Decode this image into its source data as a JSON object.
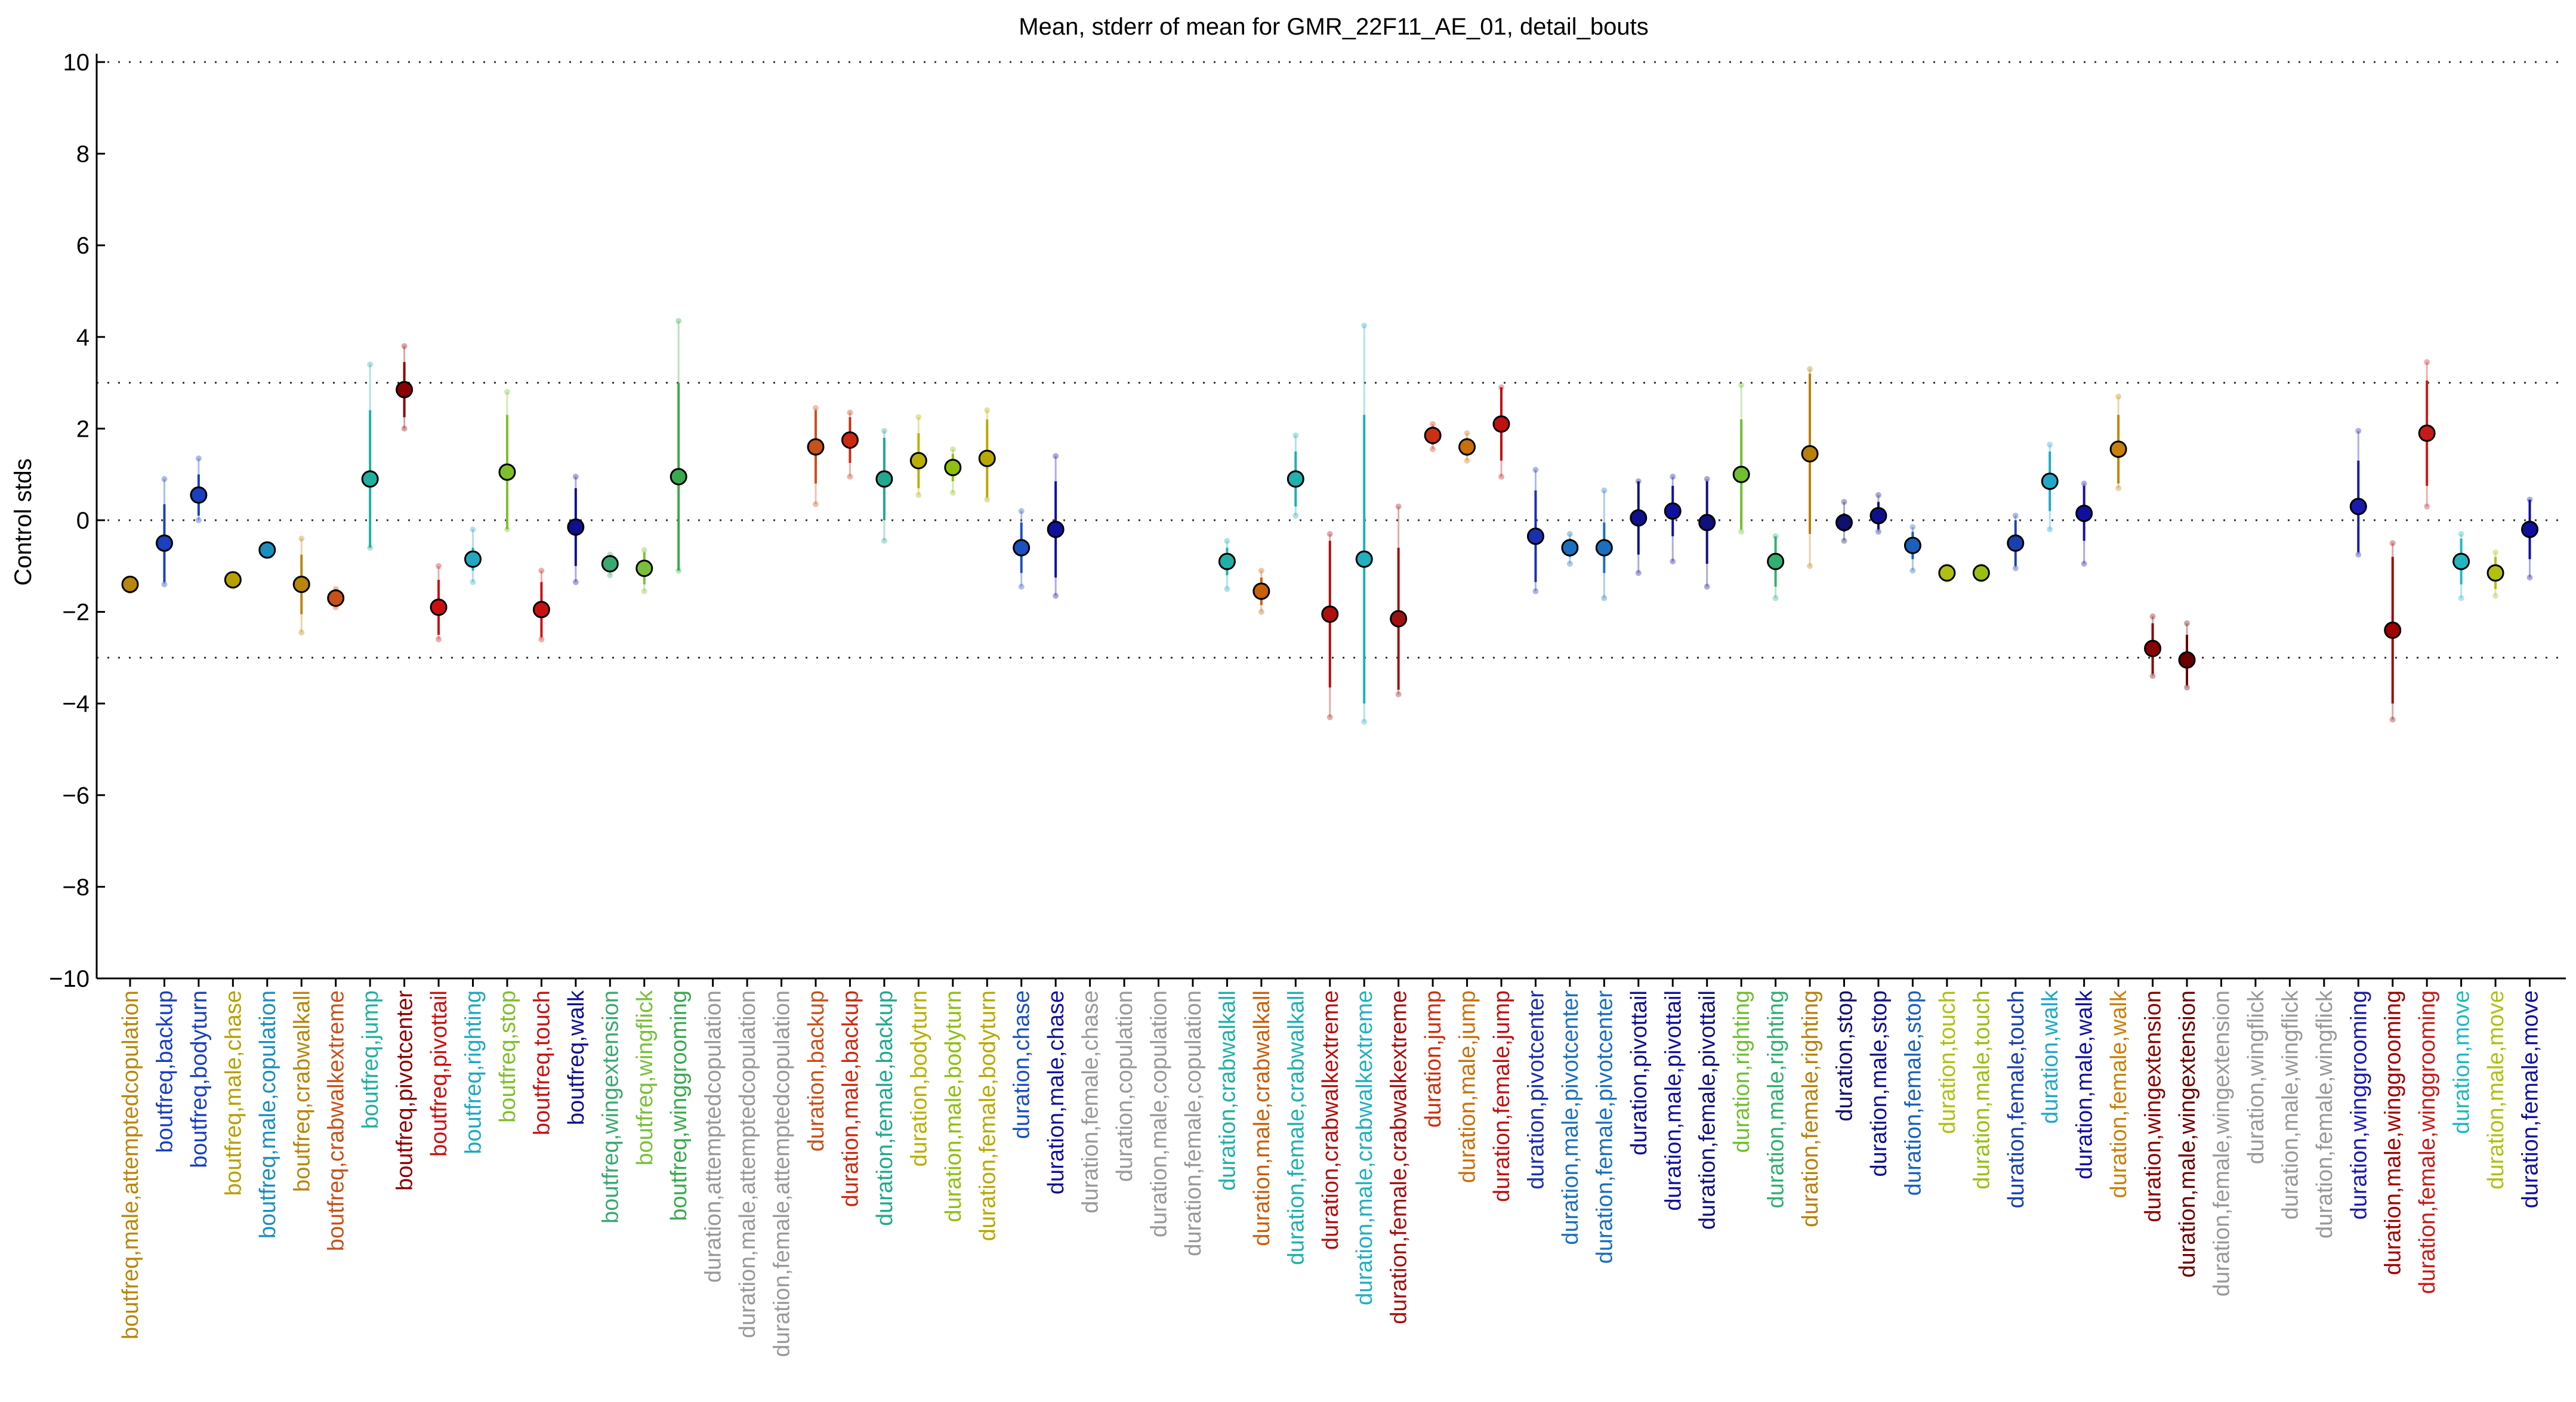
{
  "chart_data": {
    "type": "scatter",
    "title": "Mean, stderr of mean for GMR_22F11_AE_01, detail_bouts",
    "ylabel": "Control stds",
    "xlabel": "",
    "ylim": [
      -10,
      10
    ],
    "yticks": [
      -10,
      -8,
      -6,
      -4,
      -2,
      0,
      2,
      4,
      6,
      8,
      10
    ],
    "reference_lines": [
      -10,
      -3,
      0,
      3,
      10
    ],
    "grid": false,
    "legend": "none",
    "categories": [
      {
        "label": "boutfreq,male,attemptedcopulation",
        "color": "#b8860b",
        "mean": -1.4,
        "stderr": 0.1,
        "range": [
          -1.55,
          -1.3
        ]
      },
      {
        "label": "boutfreq,backup",
        "color": "#1a3fbf",
        "mean": -0.5,
        "stderr": 0.85,
        "range": [
          -1.4,
          0.9
        ]
      },
      {
        "label": "boutfreq,bodyturn",
        "color": "#1a3fbf",
        "mean": 0.55,
        "stderr": 0.45,
        "range": [
          0.0,
          1.35
        ]
      },
      {
        "label": "boutfreq,male,chase",
        "color": "#b8a000",
        "mean": -1.3,
        "stderr": 0.1,
        "range": [
          -1.45,
          -1.2
        ]
      },
      {
        "label": "boutfreq,male,copulation",
        "color": "#1a8fbf",
        "mean": -0.65,
        "stderr": 0.05,
        "range": [
          -0.75,
          -0.55
        ]
      },
      {
        "label": "boutfreq,crabwalkall",
        "color": "#b8860b",
        "mean": -1.4,
        "stderr": 0.65,
        "range": [
          -2.45,
          -0.4
        ]
      },
      {
        "label": "boutfreq,crabwalkextreme",
        "color": "#c8501a",
        "mean": -1.7,
        "stderr": 0.2,
        "range": [
          -1.9,
          -1.5
        ]
      },
      {
        "label": "boutfreq,jump",
        "color": "#20b0a0",
        "mean": 0.9,
        "stderr": 1.5,
        "range": [
          -0.6,
          3.4
        ]
      },
      {
        "label": "boutfreq,pivotcenter",
        "color": "#8b0000",
        "mean": 2.85,
        "stderr": 0.6,
        "range": [
          2.0,
          3.8
        ]
      },
      {
        "label": "boutfreq,pivottail",
        "color": "#cc1010",
        "mean": -1.9,
        "stderr": 0.6,
        "range": [
          -2.6,
          -1.0
        ]
      },
      {
        "label": "boutfreq,righting",
        "color": "#20a8c0",
        "mean": -0.85,
        "stderr": 0.25,
        "range": [
          -1.35,
          -0.2
        ]
      },
      {
        "label": "boutfreq,stop",
        "color": "#7fbf2a",
        "mean": 1.05,
        "stderr": 1.25,
        "range": [
          -0.2,
          2.8
        ]
      },
      {
        "label": "boutfreq,touch",
        "color": "#cc1010",
        "mean": -1.95,
        "stderr": 0.6,
        "range": [
          -2.6,
          -1.1
        ]
      },
      {
        "label": "boutfreq,walk",
        "color": "#10108f",
        "mean": -0.15,
        "stderr": 0.85,
        "range": [
          -1.35,
          0.95
        ]
      },
      {
        "label": "boutfreq,wingextension",
        "color": "#3aa870",
        "mean": -0.95,
        "stderr": 0.15,
        "range": [
          -1.2,
          -0.75
        ]
      },
      {
        "label": "boutfreq,wingflick",
        "color": "#7abf3a",
        "mean": -1.05,
        "stderr": 0.35,
        "range": [
          -1.55,
          -0.65
        ]
      },
      {
        "label": "boutfreq,winggrooming",
        "color": "#3aa850",
        "mean": 0.95,
        "stderr": 2.05,
        "range": [
          -1.1,
          4.35
        ]
      },
      {
        "label": "duration,attemptedcopulation",
        "color": "#999999",
        "mean": null,
        "stderr": null,
        "range": null
      },
      {
        "label": "duration,male,attemptedcopulation",
        "color": "#999999",
        "mean": null,
        "stderr": null,
        "range": null
      },
      {
        "label": "duration,female,attemptedcopulation",
        "color": "#999999",
        "mean": null,
        "stderr": null,
        "range": null
      },
      {
        "label": "duration,backup",
        "color": "#c8501a",
        "mean": 1.6,
        "stderr": 0.8,
        "range": [
          0.35,
          2.45
        ]
      },
      {
        "label": "duration,male,backup",
        "color": "#cc2a10",
        "mean": 1.75,
        "stderr": 0.5,
        "range": [
          0.95,
          2.35
        ]
      },
      {
        "label": "duration,female,backup",
        "color": "#20a890",
        "mean": 0.9,
        "stderr": 0.9,
        "range": [
          -0.45,
          1.95
        ]
      },
      {
        "label": "duration,bodyturn",
        "color": "#b8b000",
        "mean": 1.3,
        "stderr": 0.6,
        "range": [
          0.55,
          2.25
        ]
      },
      {
        "label": "duration,male,bodyturn",
        "color": "#8fbf10",
        "mean": 1.15,
        "stderr": 0.3,
        "range": [
          0.6,
          1.55
        ]
      },
      {
        "label": "duration,female,bodyturn",
        "color": "#b8a800",
        "mean": 1.35,
        "stderr": 0.85,
        "range": [
          0.45,
          2.4
        ]
      },
      {
        "label": "duration,chase",
        "color": "#1a50bf",
        "mean": -0.6,
        "stderr": 0.55,
        "range": [
          -1.45,
          0.2
        ]
      },
      {
        "label": "duration,male,chase",
        "color": "#10109f",
        "mean": -0.2,
        "stderr": 1.05,
        "range": [
          -1.65,
          1.4
        ]
      },
      {
        "label": "duration,female,chase",
        "color": "#999999",
        "mean": null,
        "stderr": null,
        "range": null
      },
      {
        "label": "duration,copulation",
        "color": "#999999",
        "mean": null,
        "stderr": null,
        "range": null
      },
      {
        "label": "duration,male,copulation",
        "color": "#999999",
        "mean": null,
        "stderr": null,
        "range": null
      },
      {
        "label": "duration,female,copulation",
        "color": "#999999",
        "mean": null,
        "stderr": null,
        "range": null
      },
      {
        "label": "duration,crabwalkall",
        "color": "#20b0a8",
        "mean": -0.9,
        "stderr": 0.3,
        "range": [
          -1.5,
          -0.45
        ]
      },
      {
        "label": "duration,male,crabwalkall",
        "color": "#c8600a",
        "mean": -1.55,
        "stderr": 0.3,
        "range": [
          -2.0,
          -1.1
        ]
      },
      {
        "label": "duration,female,crabwalkall",
        "color": "#20b0b0",
        "mean": 0.9,
        "stderr": 0.6,
        "range": [
          0.1,
          1.85
        ]
      },
      {
        "label": "duration,crabwalkextreme",
        "color": "#b01010",
        "mean": -2.05,
        "stderr": 1.6,
        "range": [
          -4.3,
          -0.3
        ]
      },
      {
        "label": "duration,male,crabwalkextreme",
        "color": "#20b0c0",
        "mean": -0.85,
        "stderr": 3.15,
        "range": [
          -4.4,
          4.25
        ]
      },
      {
        "label": "duration,female,crabwalkextreme",
        "color": "#a01010",
        "mean": -2.15,
        "stderr": 1.55,
        "range": [
          -3.8,
          0.3
        ]
      },
      {
        "label": "duration,jump",
        "color": "#cc3010",
        "mean": 1.85,
        "stderr": 0.2,
        "range": [
          1.55,
          2.1
        ]
      },
      {
        "label": "duration,male,jump",
        "color": "#c8700a",
        "mean": 1.6,
        "stderr": 0.2,
        "range": [
          1.3,
          1.9
        ]
      },
      {
        "label": "duration,female,jump",
        "color": "#c01010",
        "mean": 2.1,
        "stderr": 0.8,
        "range": [
          0.95,
          2.9
        ]
      },
      {
        "label": "duration,pivotcenter",
        "color": "#1a30af",
        "mean": -0.35,
        "stderr": 1.0,
        "range": [
          -1.55,
          1.1
        ]
      },
      {
        "label": "duration,male,pivotcenter",
        "color": "#1a70bf",
        "mean": -0.6,
        "stderr": 0.2,
        "range": [
          -0.95,
          -0.3
        ]
      },
      {
        "label": "duration,female,pivotcenter",
        "color": "#1a6fbf",
        "mean": -0.6,
        "stderr": 0.55,
        "range": [
          -1.7,
          0.65
        ]
      },
      {
        "label": "duration,pivottail",
        "color": "#10108f",
        "mean": 0.05,
        "stderr": 0.8,
        "range": [
          -1.15,
          0.85
        ]
      },
      {
        "label": "duration,male,pivottail",
        "color": "#10109f",
        "mean": 0.2,
        "stderr": 0.55,
        "range": [
          -0.9,
          0.95
        ]
      },
      {
        "label": "duration,female,pivottail",
        "color": "#10107f",
        "mean": -0.05,
        "stderr": 0.9,
        "range": [
          -1.45,
          0.9
        ]
      },
      {
        "label": "duration,righting",
        "color": "#6fbf30",
        "mean": 1.0,
        "stderr": 1.2,
        "range": [
          -0.25,
          2.95
        ]
      },
      {
        "label": "duration,male,righting",
        "color": "#30b070",
        "mean": -0.9,
        "stderr": 0.55,
        "range": [
          -1.7,
          -0.35
        ]
      },
      {
        "label": "duration,female,righting",
        "color": "#b8800a",
        "mean": 1.45,
        "stderr": 1.75,
        "range": [
          -1.0,
          3.3
        ]
      },
      {
        "label": "duration,stop",
        "color": "#10106f",
        "mean": -0.05,
        "stderr": 0.2,
        "range": [
          -0.45,
          0.4
        ]
      },
      {
        "label": "duration,male,stop",
        "color": "#10108f",
        "mean": 0.1,
        "stderr": 0.3,
        "range": [
          -0.25,
          0.55
        ]
      },
      {
        "label": "duration,female,stop",
        "color": "#1a60bf",
        "mean": -0.55,
        "stderr": 0.3,
        "range": [
          -1.1,
          -0.15
        ]
      },
      {
        "label": "duration,touch",
        "color": "#b0c010",
        "mean": -1.15,
        "stderr": 0.1,
        "range": [
          -1.3,
          -1.0
        ]
      },
      {
        "label": "duration,male,touch",
        "color": "#9abf10",
        "mean": -1.15,
        "stderr": 0.1,
        "range": [
          -1.3,
          -1.0
        ]
      },
      {
        "label": "duration,female,touch",
        "color": "#1a40af",
        "mean": -0.5,
        "stderr": 0.5,
        "range": [
          -1.05,
          0.1
        ]
      },
      {
        "label": "duration,walk",
        "color": "#20a8c8",
        "mean": 0.85,
        "stderr": 0.65,
        "range": [
          -0.2,
          1.65
        ]
      },
      {
        "label": "duration,male,walk",
        "color": "#10109f",
        "mean": 0.15,
        "stderr": 0.6,
        "range": [
          -0.95,
          0.8
        ]
      },
      {
        "label": "duration,female,walk",
        "color": "#c8800a",
        "mean": 1.55,
        "stderr": 0.75,
        "range": [
          0.7,
          2.7
        ]
      },
      {
        "label": "duration,wingextension",
        "color": "#8b0000",
        "mean": -2.8,
        "stderr": 0.55,
        "range": [
          -3.4,
          -2.1
        ]
      },
      {
        "label": "duration,male,wingextension",
        "color": "#6b0000",
        "mean": -3.05,
        "stderr": 0.55,
        "range": [
          -3.65,
          -2.25
        ]
      },
      {
        "label": "duration,female,wingextension",
        "color": "#999999",
        "mean": null,
        "stderr": null,
        "range": null
      },
      {
        "label": "duration,wingflick",
        "color": "#999999",
        "mean": null,
        "stderr": null,
        "range": null
      },
      {
        "label": "duration,male,wingflick",
        "color": "#999999",
        "mean": null,
        "stderr": null,
        "range": null
      },
      {
        "label": "duration,female,wingflick",
        "color": "#999999",
        "mean": null,
        "stderr": null,
        "range": null
      },
      {
        "label": "duration,winggrooming",
        "color": "#1a1aaf",
        "mean": 0.3,
        "stderr": 1.0,
        "range": [
          -0.75,
          1.95
        ]
      },
      {
        "label": "duration,male,winggrooming",
        "color": "#a00000",
        "mean": -2.4,
        "stderr": 1.6,
        "range": [
          -4.35,
          -0.5
        ]
      },
      {
        "label": "duration,female,winggrooming",
        "color": "#c81a1a",
        "mean": 1.9,
        "stderr": 1.15,
        "range": [
          0.3,
          3.45
        ]
      },
      {
        "label": "duration,move",
        "color": "#20b8c0",
        "mean": -0.9,
        "stderr": 0.5,
        "range": [
          -1.7,
          -0.3
        ]
      },
      {
        "label": "duration,male,move",
        "color": "#b0c010",
        "mean": -1.15,
        "stderr": 0.35,
        "range": [
          -1.65,
          -0.7
        ]
      },
      {
        "label": "duration,female,move",
        "color": "#10109f",
        "mean": -0.2,
        "stderr": 0.65,
        "range": [
          -1.25,
          0.45
        ]
      }
    ]
  }
}
